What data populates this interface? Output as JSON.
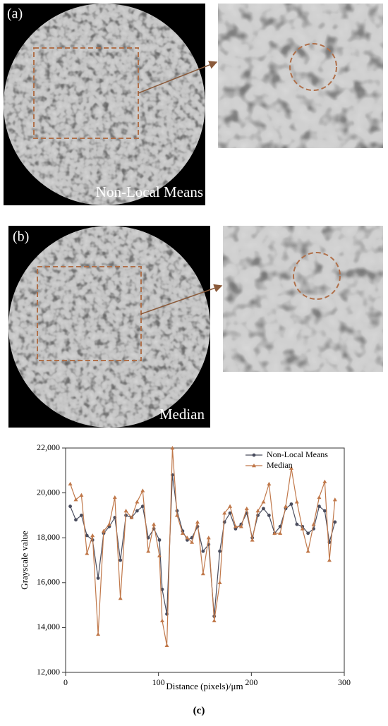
{
  "panel_a": {
    "label": "(a)",
    "method": "Non-Local Means"
  },
  "panel_b": {
    "label": "(b)",
    "method": "Median"
  },
  "caption": "(c)",
  "chart_data": {
    "type": "line",
    "xlabel": "Distance (pixels)/μm",
    "ylabel": "Grayscale value",
    "x": [
      5,
      11,
      17,
      23,
      29,
      35,
      41,
      47,
      53,
      59,
      65,
      71,
      77,
      83,
      89,
      95,
      101,
      104,
      109,
      115,
      120,
      126,
      131,
      136,
      142,
      148,
      154,
      160,
      166,
      171,
      177,
      183,
      189,
      195,
      201,
      207,
      213,
      219,
      225,
      231,
      237,
      243,
      249,
      255,
      261,
      267,
      273,
      279,
      284,
      290
    ],
    "series": [
      {
        "name": "Non-Local Means",
        "color": "#4a4d5e",
        "marker": "circle",
        "values": [
          19400,
          18800,
          19000,
          18100,
          17900,
          16200,
          18200,
          18500,
          18900,
          17000,
          19000,
          18900,
          19200,
          19400,
          18000,
          18400,
          17900,
          15700,
          14600,
          20800,
          19200,
          18300,
          17900,
          18000,
          18500,
          17400,
          17700,
          14500,
          17400,
          18700,
          19100,
          18400,
          18600,
          19100,
          18000,
          19000,
          19300,
          19000,
          18200,
          18500,
          19300,
          19500,
          18600,
          18500,
          18200,
          18400,
          19400,
          19200,
          17800,
          18700
        ]
      },
      {
        "name": "Median",
        "color": "#c0784a",
        "marker": "triangle",
        "values": [
          20400,
          19700,
          19900,
          17300,
          18100,
          13700,
          18300,
          18600,
          19800,
          15300,
          19200,
          18900,
          19600,
          20100,
          17400,
          18600,
          17200,
          14300,
          13200,
          22000,
          19000,
          18200,
          18000,
          17800,
          18700,
          16400,
          18000,
          14300,
          16000,
          19100,
          19400,
          18500,
          18500,
          19300,
          17900,
          19200,
          19600,
          20400,
          18200,
          18200,
          19400,
          21100,
          19600,
          18400,
          17400,
          18600,
          19800,
          20500,
          17000,
          19700
        ]
      }
    ],
    "xlim": [
      0,
      300
    ],
    "xticks": [
      0,
      100,
      200,
      300
    ],
    "ylim": [
      12000,
      22000
    ],
    "yticks": [
      {
        "value": 12000,
        "label": "12,000"
      },
      {
        "value": 14000,
        "label": "14,000"
      },
      {
        "value": 16000,
        "label": "16,000"
      },
      {
        "value": 18000,
        "label": "18,000"
      },
      {
        "value": 20000,
        "label": "20,000"
      },
      {
        "value": 22000,
        "label": "22,000"
      }
    ],
    "legend": "upper right"
  }
}
